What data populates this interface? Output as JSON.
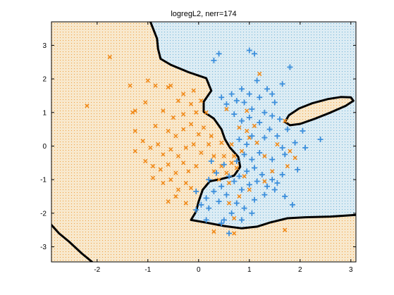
{
  "chart_data": {
    "type": "scatter",
    "title": "logregL2, nerr=174",
    "xlim": [
      -2.9,
      3.1
    ],
    "ylim": [
      -3.45,
      3.7
    ],
    "x_ticks": [
      "-2",
      "-1",
      "0",
      "1",
      "2",
      "3"
    ],
    "x_tick_values": [
      -2,
      -1,
      0,
      1,
      2,
      3
    ],
    "y_ticks": [
      "3",
      "2",
      "1",
      "0",
      "-1",
      "-2",
      "-3"
    ],
    "y_tick_values": [
      3,
      2,
      1,
      0,
      -1,
      -2,
      -3
    ],
    "grid": false,
    "legend": "none",
    "region_colors": {
      "class1": "#f5dfb8",
      "class2": "#cfe4ef"
    },
    "region_dot_colors": {
      "class1": "#f09a2a",
      "class2": "#5aa7cf"
    },
    "boundary_color": "#000000",
    "series": [
      {
        "marker": "x",
        "color": "#f08a1a",
        "points": [
          [
            -1.75,
            2.65
          ],
          [
            -2.2,
            1.2
          ],
          [
            -1.35,
            1.8
          ],
          [
            -1.3,
            1.0
          ],
          [
            -1.25,
            1.05
          ],
          [
            -1.05,
            1.3
          ],
          [
            -1.0,
            1.95
          ],
          [
            -0.85,
            1.8
          ],
          [
            -0.6,
            1.75
          ],
          [
            -0.55,
            1.8
          ],
          [
            -0.4,
            1.35
          ],
          [
            -0.3,
            1.55
          ],
          [
            -0.15,
            1.25
          ],
          [
            -0.1,
            1.65
          ],
          [
            0.05,
            1.35
          ],
          [
            -0.7,
            1.05
          ],
          [
            -0.5,
            0.85
          ],
          [
            -0.3,
            0.95
          ],
          [
            -0.05,
            1.0
          ],
          [
            0.15,
            1.0
          ],
          [
            -0.85,
            0.6
          ],
          [
            -0.6,
            0.45
          ],
          [
            -0.45,
            0.3
          ],
          [
            -0.3,
            0.5
          ],
          [
            -0.15,
            0.65
          ],
          [
            0.0,
            0.35
          ],
          [
            0.1,
            0.55
          ],
          [
            0.25,
            0.3
          ],
          [
            -1.25,
            0.45
          ],
          [
            -1.1,
            0.15
          ],
          [
            -0.95,
            -0.05
          ],
          [
            -0.8,
            0.05
          ],
          [
            -0.7,
            -0.25
          ],
          [
            -0.55,
            -0.1
          ],
          [
            -0.4,
            -0.3
          ],
          [
            -0.25,
            -0.05
          ],
          [
            -0.1,
            0.05
          ],
          [
            0.05,
            -0.2
          ],
          [
            0.2,
            0.05
          ],
          [
            0.3,
            -0.3
          ],
          [
            -1.25,
            -0.15
          ],
          [
            -1.05,
            -0.45
          ],
          [
            -0.9,
            -0.6
          ],
          [
            -0.75,
            -0.7
          ],
          [
            -0.6,
            -0.55
          ],
          [
            -0.45,
            -0.8
          ],
          [
            -0.3,
            -0.5
          ],
          [
            -0.2,
            -0.75
          ],
          [
            -0.05,
            -0.6
          ],
          [
            -0.9,
            -0.95
          ],
          [
            -0.7,
            -1.1
          ],
          [
            -0.55,
            -1.0
          ],
          [
            -0.4,
            -1.3
          ],
          [
            -0.25,
            -1.1
          ],
          [
            -0.45,
            -1.5
          ],
          [
            -0.25,
            -1.7
          ],
          [
            -0.15,
            -1.25
          ],
          [
            -0.6,
            -1.65
          ],
          [
            0.3,
            -0.75
          ],
          [
            0.45,
            -0.6
          ],
          [
            0.55,
            -0.8
          ],
          [
            0.65,
            -0.5
          ],
          [
            0.5,
            -0.3
          ],
          [
            0.4,
            -1.0
          ],
          [
            0.6,
            -1.1
          ],
          [
            0.7,
            -0.3
          ],
          [
            0.85,
            -0.15
          ],
          [
            0.75,
            -0.65
          ],
          [
            0.9,
            -0.9
          ],
          [
            0.95,
            0.45
          ],
          [
            1.0,
            0.25
          ],
          [
            1.1,
            0.6
          ],
          [
            0.45,
            0.1
          ],
          [
            0.65,
            0.05
          ],
          [
            0.8,
            0.55
          ],
          [
            1.15,
            0.1
          ],
          [
            1.3,
            -0.3
          ],
          [
            1.55,
            0.05
          ],
          [
            1.8,
            -0.15
          ],
          [
            1.9,
            -0.35
          ],
          [
            1.75,
            -0.6
          ],
          [
            1.7,
            0.75
          ],
          [
            1.2,
            2.15
          ],
          [
            1.0,
            -1.3
          ],
          [
            0.6,
            -1.7
          ],
          [
            0.7,
            -2.15
          ],
          [
            0.8,
            -1.5
          ],
          [
            0.3,
            -2.55
          ],
          [
            0.7,
            -2.6
          ],
          [
            1.7,
            -2.5
          ],
          [
            1.3,
            -1.05
          ],
          [
            1.45,
            -0.75
          ],
          [
            0.55,
            1.1
          ],
          [
            0.95,
            1.05
          ]
        ]
      },
      {
        "marker": "+",
        "color": "#3c8fdc",
        "points": [
          [
            0.3,
            2.55
          ],
          [
            0.4,
            2.75
          ],
          [
            1.0,
            2.85
          ],
          [
            1.1,
            2.75
          ],
          [
            1.8,
            2.35
          ],
          [
            1.15,
            1.95
          ],
          [
            1.35,
            1.7
          ],
          [
            1.45,
            1.55
          ],
          [
            0.85,
            1.7
          ],
          [
            1.0,
            1.55
          ],
          [
            1.2,
            1.45
          ],
          [
            1.5,
            1.3
          ],
          [
            1.65,
            1.85
          ],
          [
            0.75,
            1.35
          ],
          [
            0.55,
            1.25
          ],
          [
            0.45,
            1.45
          ],
          [
            0.65,
            1.55
          ],
          [
            0.9,
            1.3
          ],
          [
            1.05,
            1.1
          ],
          [
            1.3,
            1.0
          ],
          [
            1.45,
            0.9
          ],
          [
            1.6,
            0.8
          ],
          [
            0.7,
            0.95
          ],
          [
            0.85,
            0.75
          ],
          [
            1.0,
            0.85
          ],
          [
            1.2,
            0.7
          ],
          [
            1.4,
            0.5
          ],
          [
            1.55,
            0.3
          ],
          [
            2.05,
            0.45
          ],
          [
            2.4,
            0.2
          ],
          [
            1.9,
            0.1
          ],
          [
            2.1,
            -0.05
          ],
          [
            1.7,
            -0.25
          ],
          [
            1.45,
            -0.4
          ],
          [
            1.2,
            -0.2
          ],
          [
            1.05,
            -0.4
          ],
          [
            0.9,
            -0.25
          ],
          [
            1.95,
            -0.7
          ],
          [
            1.65,
            -0.85
          ],
          [
            1.45,
            -1.0
          ],
          [
            1.25,
            -0.85
          ],
          [
            1.1,
            -0.65
          ],
          [
            0.95,
            -0.75
          ],
          [
            0.8,
            -0.9
          ],
          [
            1.55,
            -1.1
          ],
          [
            1.35,
            -1.2
          ],
          [
            1.15,
            -1.05
          ],
          [
            1.0,
            -1.15
          ],
          [
            0.85,
            -1.3
          ],
          [
            0.7,
            -1.05
          ],
          [
            0.6,
            -0.9
          ],
          [
            0.45,
            -1.2
          ],
          [
            0.3,
            -1.35
          ],
          [
            0.15,
            -1.55
          ],
          [
            0.05,
            -1.75
          ],
          [
            -0.05,
            -1.9
          ],
          [
            0.2,
            -1.85
          ],
          [
            0.4,
            -1.65
          ],
          [
            0.55,
            -1.45
          ],
          [
            0.75,
            -1.7
          ],
          [
            0.9,
            -1.85
          ],
          [
            1.1,
            -1.6
          ],
          [
            1.3,
            -1.45
          ],
          [
            1.5,
            -1.3
          ],
          [
            1.7,
            -1.5
          ],
          [
            1.85,
            -1.75
          ],
          [
            1.05,
            -2.0
          ],
          [
            0.65,
            -2.0
          ],
          [
            0.5,
            -2.2
          ],
          [
            0.85,
            -2.2
          ],
          [
            0.6,
            -2.6
          ],
          [
            0.45,
            -2.3
          ],
          [
            0.15,
            -2.2
          ],
          [
            -0.05,
            -1.35
          ],
          [
            0.2,
            -1.0
          ],
          [
            0.35,
            -0.8
          ],
          [
            0.25,
            -0.45
          ],
          [
            0.5,
            -0.55
          ],
          [
            0.75,
            -0.45
          ],
          [
            0.95,
            0.05
          ],
          [
            1.05,
            0.3
          ],
          [
            0.8,
            0.2
          ],
          [
            1.3,
            0.25
          ],
          [
            1.75,
            0.5
          ],
          [
            1.65,
            -0.05
          ]
        ]
      }
    ],
    "decision_boundary": [
      [
        [
          -0.95,
          3.7
        ],
        [
          -0.82,
          3.2
        ],
        [
          -0.8,
          2.9
        ],
        [
          -0.75,
          2.6
        ],
        [
          -0.55,
          2.42
        ],
        [
          -0.2,
          2.2
        ],
        [
          0.15,
          2.02
        ],
        [
          0.25,
          1.65
        ],
        [
          0.1,
          1.32
        ],
        [
          0.1,
          1.02
        ],
        [
          0.3,
          0.82
        ],
        [
          0.45,
          0.5
        ],
        [
          0.52,
          0.2
        ],
        [
          0.62,
          -0.05
        ],
        [
          0.78,
          -0.32
        ],
        [
          0.82,
          -0.62
        ],
        [
          0.7,
          -0.88
        ],
        [
          0.45,
          -0.98
        ],
        [
          0.22,
          -1.05
        ],
        [
          0.08,
          -1.3
        ],
        [
          0.0,
          -1.65
        ],
        [
          -0.05,
          -1.95
        ],
        [
          -0.15,
          -2.2
        ],
        [
          0.15,
          -2.28
        ],
        [
          0.5,
          -2.38
        ],
        [
          0.85,
          -2.45
        ],
        [
          1.15,
          -2.4
        ],
        [
          1.4,
          -2.28
        ],
        [
          1.75,
          -2.15
        ],
        [
          2.1,
          -2.12
        ],
        [
          2.6,
          -2.1
        ],
        [
          3.1,
          -2.05
        ]
      ],
      [
        [
          -2.9,
          -2.35
        ],
        [
          -2.75,
          -2.6
        ],
        [
          -2.55,
          -2.85
        ],
        [
          -2.3,
          -3.2
        ],
        [
          -2.1,
          -3.45
        ]
      ],
      [
        [
          1.7,
          0.72
        ],
        [
          1.78,
          0.92
        ],
        [
          1.98,
          1.12
        ],
        [
          2.25,
          1.28
        ],
        [
          2.55,
          1.4
        ],
        [
          2.8,
          1.46
        ],
        [
          3.0,
          1.45
        ],
        [
          3.05,
          1.35
        ],
        [
          2.9,
          1.2
        ],
        [
          2.6,
          1.0
        ],
        [
          2.3,
          0.82
        ],
        [
          2.0,
          0.66
        ],
        [
          1.8,
          0.62
        ],
        [
          1.7,
          0.72
        ]
      ]
    ]
  }
}
